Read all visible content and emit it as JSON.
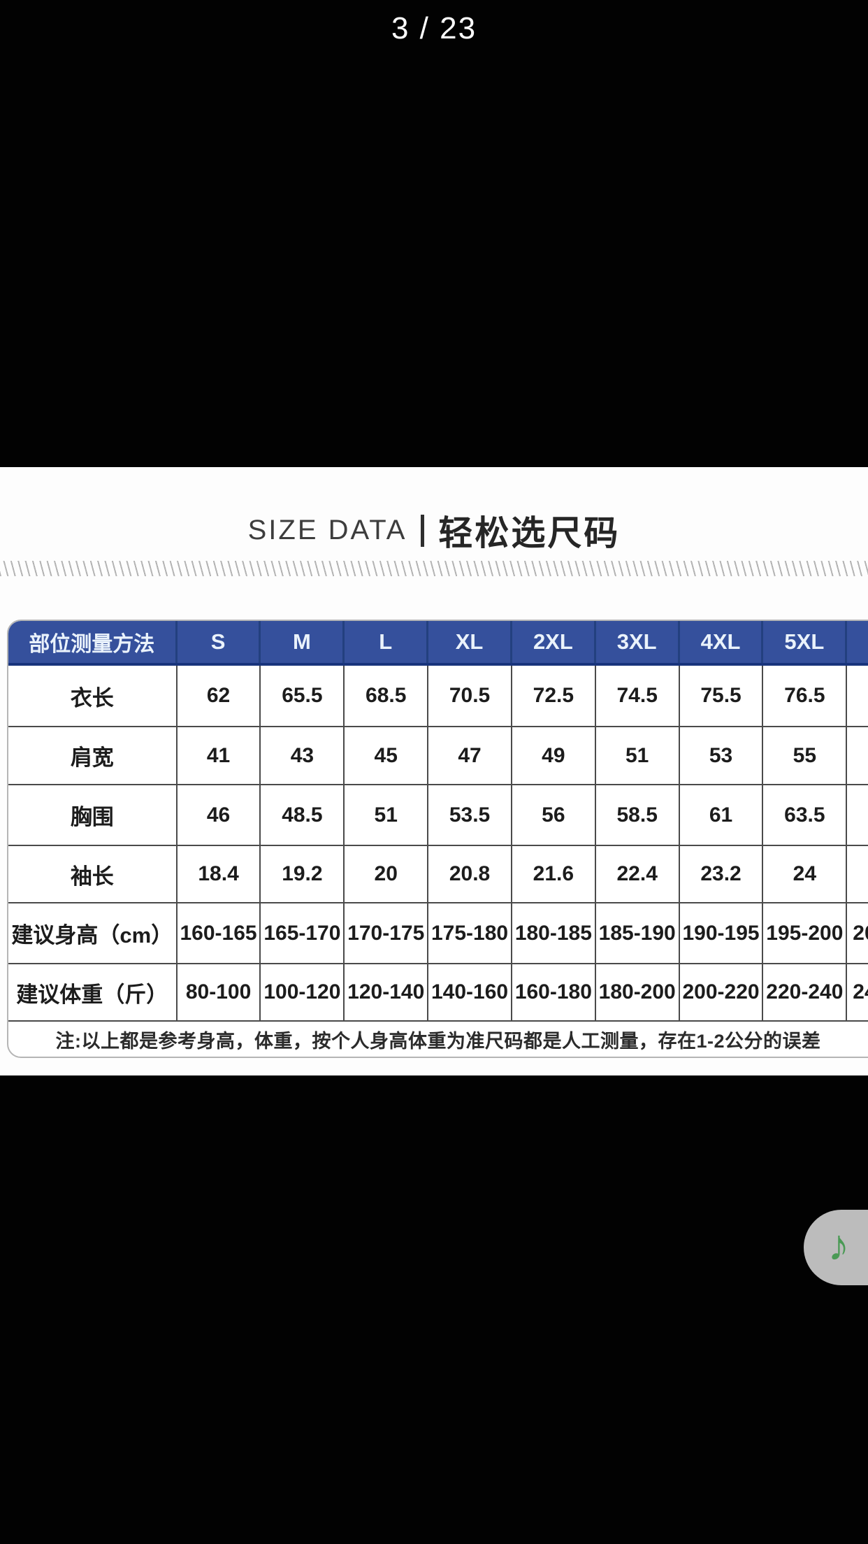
{
  "pager": {
    "label": "3 / 23"
  },
  "section_title": {
    "en": "SIZE DATA",
    "zh": "轻松选尺码"
  },
  "size_table": {
    "header": [
      "部位测量方法",
      "S",
      "M",
      "L",
      "XL",
      "2XL",
      "3XL",
      "4XL",
      "5XL"
    ],
    "rows": [
      {
        "label": "衣长",
        "values": [
          "62",
          "65.5",
          "68.5",
          "70.5",
          "72.5",
          "74.5",
          "75.5",
          "76.5"
        ],
        "cut": ""
      },
      {
        "label": "肩宽",
        "values": [
          "41",
          "43",
          "45",
          "47",
          "49",
          "51",
          "53",
          "55"
        ],
        "cut": ""
      },
      {
        "label": "胸围",
        "values": [
          "46",
          "48.5",
          "51",
          "53.5",
          "56",
          "58.5",
          "61",
          "63.5"
        ],
        "cut": ""
      },
      {
        "label": "袖长",
        "values": [
          "18.4",
          "19.2",
          "20",
          "20.8",
          "21.6",
          "22.4",
          "23.2",
          "24"
        ],
        "cut": ""
      },
      {
        "label": "建议身高（cm）",
        "values": [
          "160-165",
          "165-170",
          "170-175",
          "175-180",
          "180-185",
          "185-190",
          "190-195",
          "195-200"
        ],
        "cut": "20"
      },
      {
        "label": "建议体重（斤）",
        "values": [
          "80-100",
          "100-120",
          "120-140",
          "140-160",
          "160-180",
          "180-200",
          "200-220",
          "220-240"
        ],
        "cut": "24"
      }
    ],
    "note": "注:以上都是参考身高，体重，按个人身高体重为准尺码都是人工测量，存在1-2公分的误差"
  },
  "music_button": {
    "icon": "♪"
  },
  "colors": {
    "header_blue": "#35509c",
    "header_divider_navy": "#18347c",
    "grid_line": "#4a4a4a",
    "table_outer_border": "#b5b5b5",
    "note_green": "#4a9a55",
    "pill_gray": "#bcbcbc"
  }
}
